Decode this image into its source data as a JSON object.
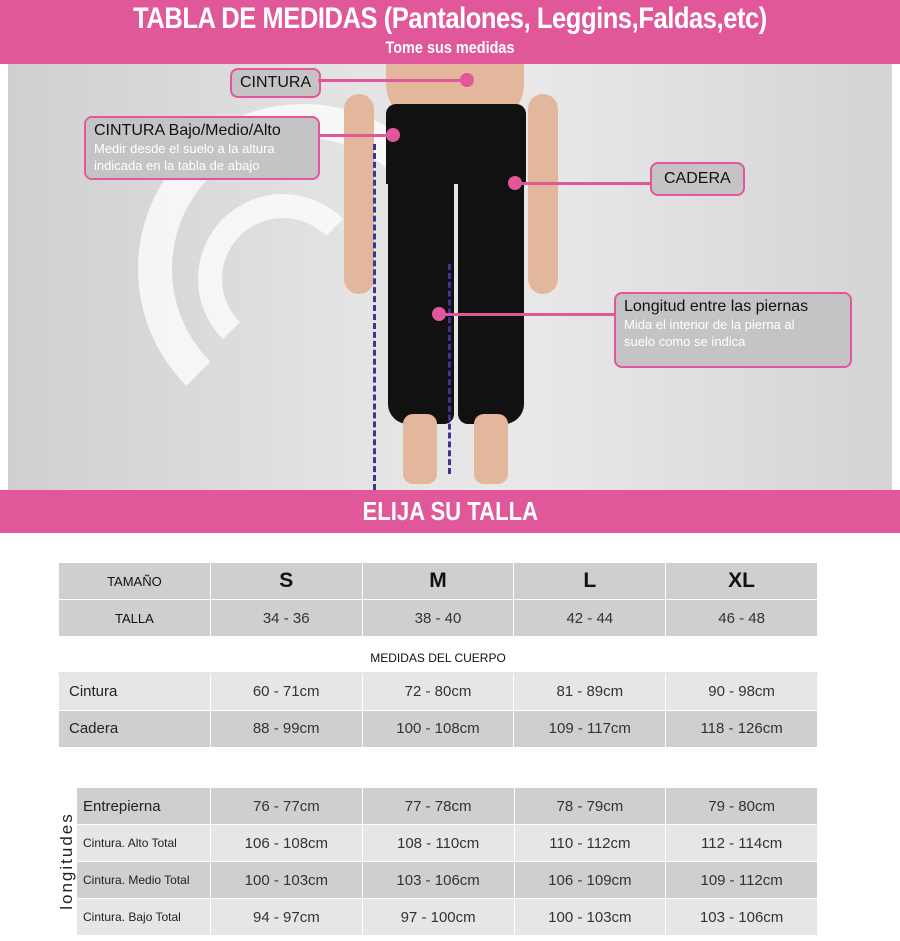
{
  "header": {
    "title": "TABLA DE MEDIDAS (Pantalones, Leggins,Faldas,etc)",
    "subtitle": "Tome sus medidas"
  },
  "callouts": {
    "cintura": "CINTURA",
    "cintura_bma": {
      "title": "CINTURA Bajo/Medio/Alto",
      "line1": "Medir desde el suelo a la altura",
      "line2": "indicada en la  tabla de abajo"
    },
    "cadera": "CADERA",
    "longitud": {
      "title": "Longitud entre las piernas",
      "line1": "Mida el interior de la pierna al",
      "line2": "suelo como se indica"
    }
  },
  "section_title": "ELIJA SU TALLA",
  "sizes": {
    "tamano_label": "TAMAÑO",
    "talla_label": "TALLA",
    "names": [
      "S",
      "M",
      "L",
      "XL"
    ],
    "tallas": [
      "34 - 36",
      "38 - 40",
      "42 - 44",
      "46 - 48"
    ]
  },
  "body_title": "MEDIDAS DEL CUERPO",
  "body": [
    {
      "label": "Cintura",
      "values": [
        "60 - 71cm",
        "72 - 80cm",
        "81 - 89cm",
        "90 - 98cm"
      ]
    },
    {
      "label": "Cadera",
      "values": [
        "88 - 99cm",
        "100 - 108cm",
        "109 - 117cm",
        "118 - 126cm"
      ]
    }
  ],
  "lengths_label": "longitudes",
  "lengths": [
    {
      "label": "Entrepierna",
      "values": [
        "76 - 77cm",
        "77 - 78cm",
        "78 - 79cm",
        "79 - 80cm"
      ]
    },
    {
      "label": "Cintura. Alto Total",
      "values": [
        "106 - 108cm",
        "108 - 110cm",
        "110  - 112cm",
        "112 - 114cm"
      ]
    },
    {
      "label": "Cintura. Medio Total",
      "values": [
        "100 - 103cm",
        "103 - 106cm",
        "106 - 109cm",
        "109 - 112cm"
      ]
    },
    {
      "label": "Cintura. Bajo Total",
      "values": [
        "94 - 97cm",
        "97 - 100cm",
        "100 - 103cm",
        "103 - 106cm"
      ]
    }
  ],
  "colors": {
    "accent": "#e0589a",
    "arrow": "#3b3594"
  }
}
